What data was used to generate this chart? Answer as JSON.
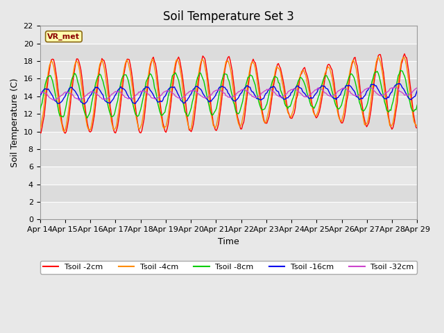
{
  "title": "Soil Temperature Set 3",
  "xlabel": "Time",
  "ylabel": "Soil Temperature (C)",
  "ylim": [
    0,
    22
  ],
  "yticks": [
    0,
    2,
    4,
    6,
    8,
    10,
    12,
    14,
    16,
    18,
    20,
    22
  ],
  "x_tick_labels": [
    "Apr 14",
    "Apr 15",
    "Apr 16",
    "Apr 17",
    "Apr 18",
    "Apr 19",
    "Apr 20",
    "Apr 21",
    "Apr 22",
    "Apr 23",
    "Apr 24",
    "Apr 25",
    "Apr 26",
    "Apr 27",
    "Apr 28",
    "Apr 29"
  ],
  "series_labels": [
    "Tsoil -2cm",
    "Tsoil -4cm",
    "Tsoil -8cm",
    "Tsoil -16cm",
    "Tsoil -32cm"
  ],
  "series_colors": [
    "#FF0000",
    "#FF8C00",
    "#00CC00",
    "#0000EE",
    "#CC44CC"
  ],
  "series_lw": [
    1.0,
    1.0,
    1.0,
    1.0,
    1.0
  ],
  "annotation_text": "VR_met",
  "bg_color": "#E8E8E8",
  "plot_bg_color": "#DCDCDC",
  "grid_color": "#FFFFFF",
  "title_fontsize": 12,
  "label_fontsize": 9,
  "tick_fontsize": 8
}
